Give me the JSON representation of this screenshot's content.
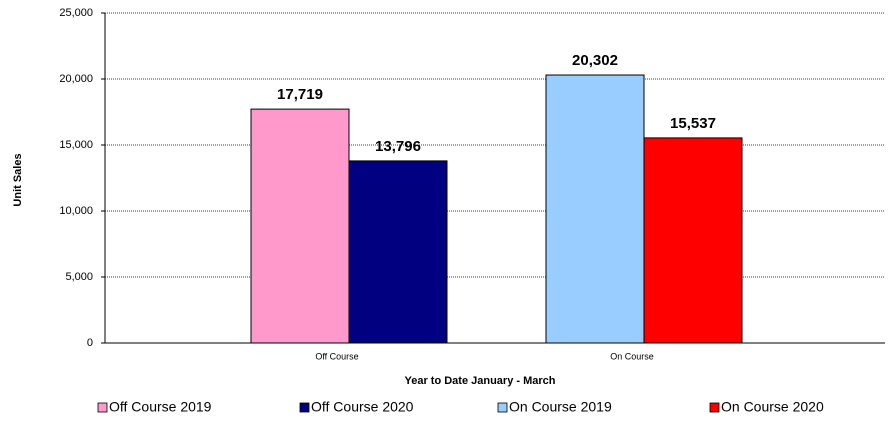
{
  "chart_data": {
    "type": "bar",
    "y_label": "Unit Sales",
    "x_label": "Year to Date January - March",
    "categories": [
      "Off Course",
      "On Course"
    ],
    "series": [
      {
        "name": "Off Course 2019",
        "color": "#ff99cc",
        "values": [
          17719,
          null
        ],
        "value_labels": [
          "17,719",
          null
        ]
      },
      {
        "name": "Off Course 2020",
        "color": "#000080",
        "values": [
          13796,
          null
        ],
        "value_labels": [
          "13,796",
          null
        ]
      },
      {
        "name": "On Course 2019",
        "color": "#99ccff",
        "values": [
          null,
          20302
        ],
        "value_labels": [
          null,
          "20,302"
        ]
      },
      {
        "name": "On Course 2020",
        "color": "#ff0000",
        "values": [
          null,
          15537
        ],
        "value_labels": [
          null,
          "15,537"
        ]
      }
    ],
    "ylim": [
      0,
      25000
    ],
    "yticks": [
      0,
      {
        "value": 5000,
        "label": "5,000"
      },
      {
        "value": 10000,
        "label": "10,000"
      },
      {
        "value": 15000,
        "label": "15,000"
      },
      {
        "value": 20000,
        "label": "20,000"
      },
      {
        "value": 25000,
        "label": "25,000"
      }
    ],
    "grid": true,
    "legend": "bottom"
  }
}
